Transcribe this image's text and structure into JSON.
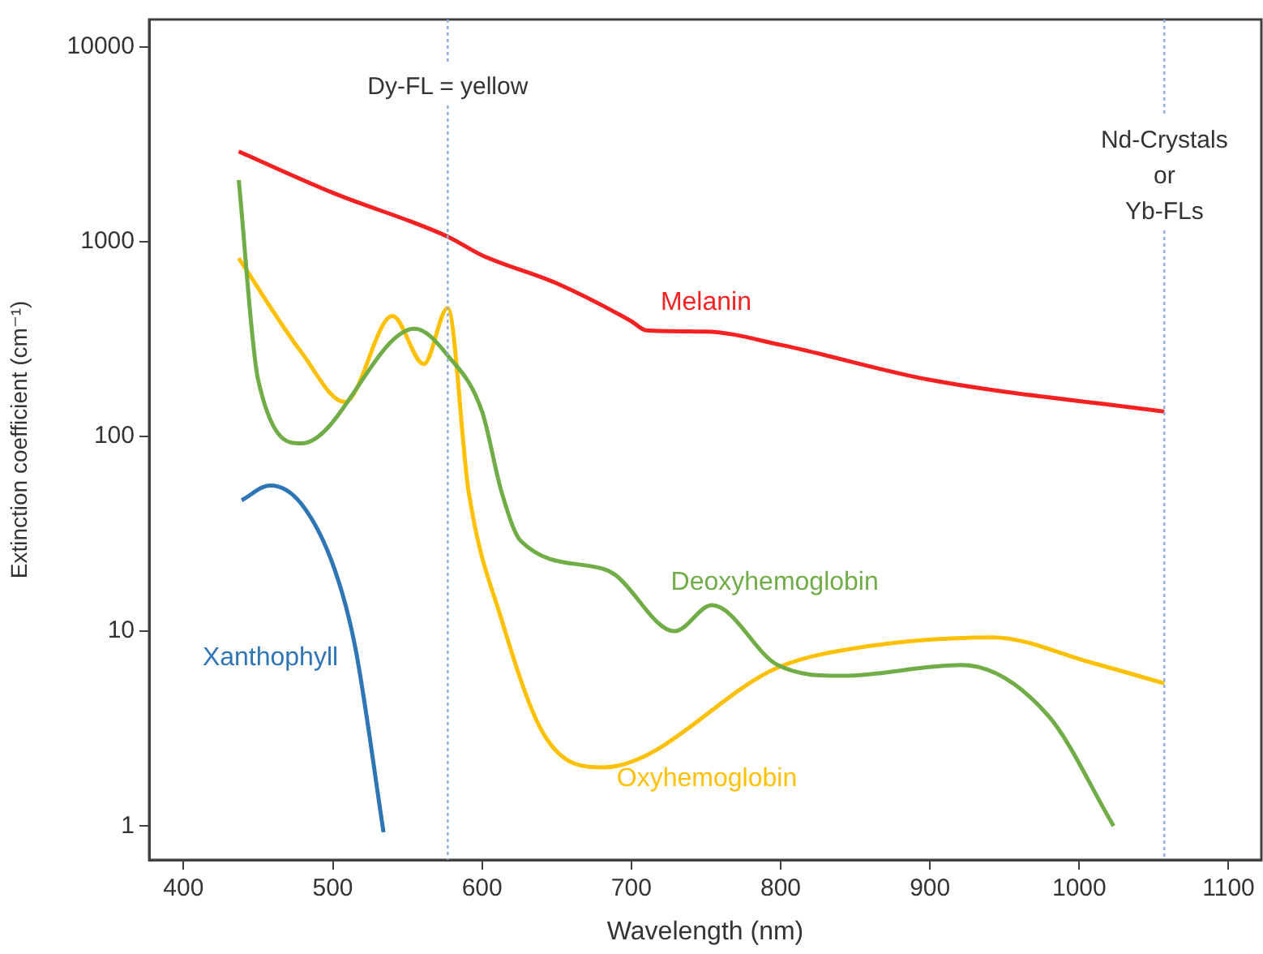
{
  "chart_data": {
    "type": "line",
    "xlabel": "Wavelength (nm)",
    "ylabel": "Extinction coefficient (cm⁻¹)",
    "log": "y",
    "grid": false,
    "legend": false,
    "marker": "none",
    "line_style": "solid",
    "xlim": [
      377,
      1122
    ],
    "xticks": [
      400,
      500,
      600,
      700,
      800,
      900,
      1000,
      1100
    ],
    "ylim": [
      0.67,
      13800
    ],
    "yticks": [
      1,
      10,
      100,
      1000,
      10000
    ],
    "series": [
      {
        "name": "Melanin",
        "color": "#f82020",
        "x": [
          437,
          500,
          577,
          600,
          650,
          700,
          710,
          750,
          800,
          900,
          1057
        ],
        "values": [
          2900,
          1780,
          1060,
          850,
          610,
          390,
          350,
          345,
          295,
          195,
          134
        ]
      },
      {
        "name": "Deoxyhemoglobin",
        "color": "#70ad47",
        "x": [
          437,
          450,
          479,
          555,
          577,
          600,
          613,
          626,
          680,
          689,
          729,
          754,
          798,
          841,
          921,
          979,
          1023
        ],
        "values": [
          2070,
          195,
          92,
          357,
          260,
          134,
          52,
          29,
          21,
          19.5,
          10,
          13.6,
          6.7,
          5.9,
          6.7,
          3.7,
          1.0
        ]
      },
      {
        "name": "Oxyhemoglobin",
        "color": "#ffc000",
        "x": [
          437,
          479,
          508,
          540,
          561,
          577,
          591,
          613,
          642,
          681,
          798,
          834,
          942,
          1008,
          1057
        ],
        "values": [
          820,
          270,
          150,
          415,
          235,
          456,
          52,
          11.5,
          2.9,
          2.0,
          6.5,
          7.8,
          9.3,
          6.9,
          5.4
        ]
      },
      {
        "name": "Xanthophyll",
        "color": "#2e75b6",
        "x": [
          439,
          458,
          479,
          501,
          515,
          534
        ],
        "values": [
          47,
          56,
          45,
          21,
          8.3,
          0.93
        ]
      }
    ],
    "ref_lines": [
      {
        "axis": "x",
        "value": 577,
        "label": "Dy-FL = yellow",
        "color": "#8eaadb",
        "line_style": "dotted"
      },
      {
        "axis": "x",
        "value": 1057,
        "label": "Nd-Crystals\nor\nYb-FLs",
        "color": "#8eaadb",
        "line_style": "dotted"
      }
    ]
  }
}
